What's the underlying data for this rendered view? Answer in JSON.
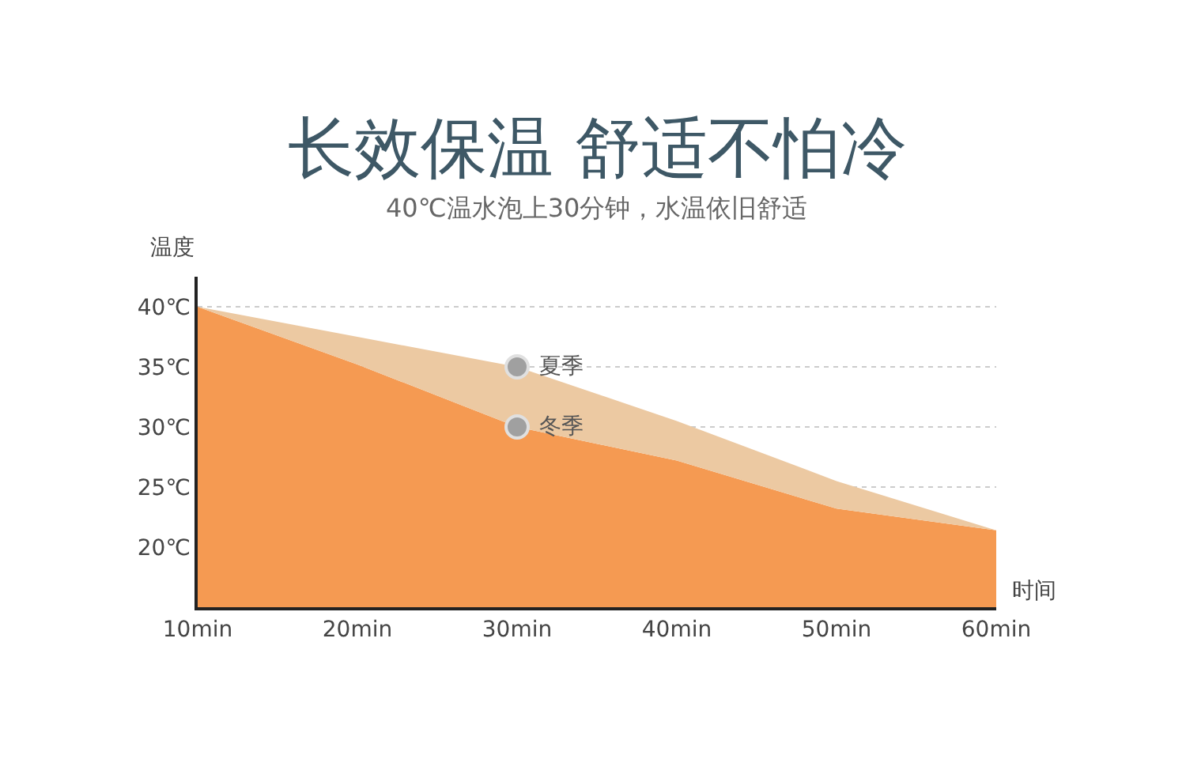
{
  "chart_data": {
    "type": "area",
    "title": "长效保温 舒适不怕冷",
    "subtitle": "40℃温水泡上30分钟，水温依旧舒适",
    "xlabel": "时间",
    "ylabel": "温度",
    "x": [
      10,
      20,
      30,
      40,
      50,
      60
    ],
    "series": [
      {
        "color": "#ecc9a2",
        "values": [
          40,
          37.5,
          35,
          30.5,
          25.5,
          21.4
        ]
      },
      {
        "color": "#f59a52",
        "values": [
          40,
          35.2,
          30,
          27.2,
          23.2,
          21.4
        ]
      }
    ],
    "annotations": [
      {
        "text": "夏季",
        "x": 30,
        "y": 35
      },
      {
        "text": "冬季",
        "x": 30,
        "y": 30
      }
    ],
    "xlim": [
      10,
      60
    ],
    "ylim": [
      15,
      42.5
    ],
    "xticks": [
      {
        "value": 10,
        "label": "10min"
      },
      {
        "value": 20,
        "label": "20min"
      },
      {
        "value": 30,
        "label": "30min"
      },
      {
        "value": 40,
        "label": "40min"
      },
      {
        "value": 50,
        "label": "50min"
      },
      {
        "value": 60,
        "label": "60min"
      }
    ],
    "yticks": [
      {
        "value": 20,
        "label": "20℃"
      },
      {
        "value": 25,
        "label": "25℃"
      },
      {
        "value": 30,
        "label": "30℃"
      },
      {
        "value": 35,
        "label": "35℃"
      },
      {
        "value": 40,
        "label": "40℃"
      }
    ],
    "grid": "y"
  }
}
